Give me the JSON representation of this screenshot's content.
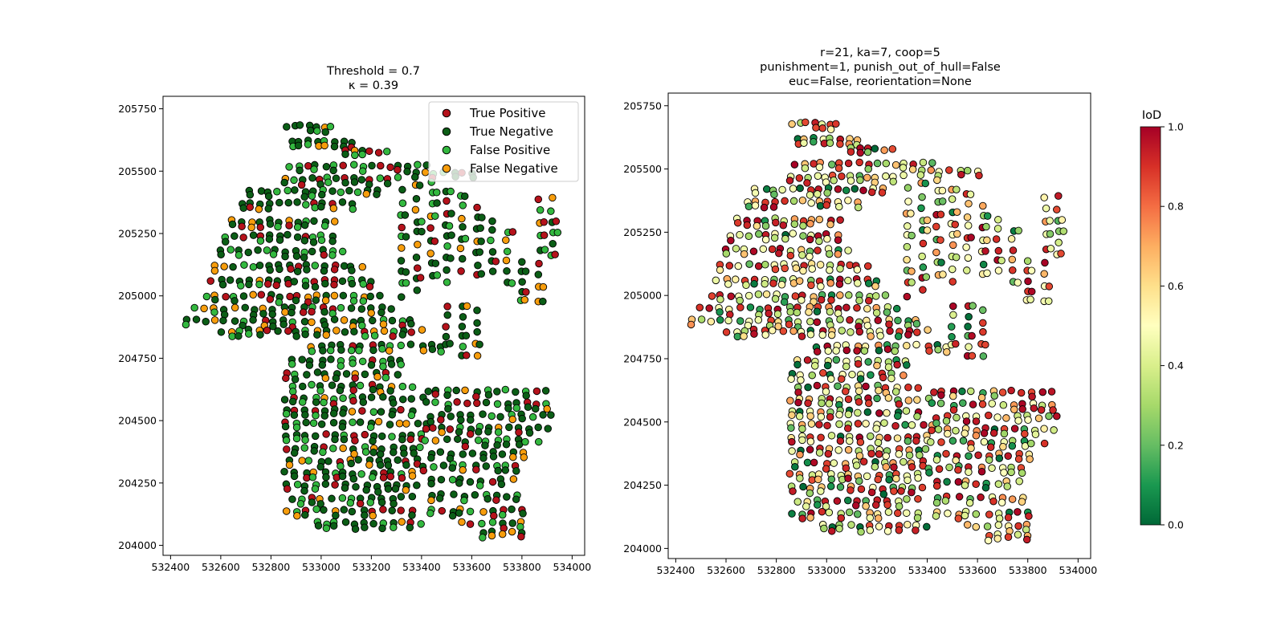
{
  "chart_data": [
    {
      "type": "scatter",
      "title_lines": [
        "Threshold = 0.7",
        "κ = 0.39"
      ],
      "xlim": [
        532370,
        534050
      ],
      "ylim": [
        203960,
        205800
      ],
      "xticks": [
        532400,
        532600,
        532800,
        533000,
        533200,
        533400,
        533600,
        533800,
        534000
      ],
      "yticks": [
        204000,
        204250,
        204500,
        204750,
        205000,
        205250,
        205500,
        205750
      ],
      "legend": {
        "placement": "upper right",
        "entries": [
          {
            "label": "True Positive",
            "color": "#b5121b"
          },
          {
            "label": "True Negative",
            "color": "#0b5e16"
          },
          {
            "label": "False Positive",
            "color": "#33b83f"
          },
          {
            "label": "False Negative",
            "color": "#f79d0c"
          }
        ]
      },
      "series_colors": {
        "TP": "#b5121b",
        "TN": "#0b5e16",
        "FP": "#33b83f",
        "FN": "#f79d0c"
      }
    },
    {
      "type": "scatter",
      "title_lines": [
        "r=21, ka=7, coop=5",
        "punishment=1, punish_out_of_hull=False",
        "euc=False, reorientation=None"
      ],
      "xlim": [
        532370,
        534050
      ],
      "ylim": [
        203960,
        205800
      ],
      "xticks": [
        532400,
        532600,
        532800,
        533000,
        533200,
        533400,
        533600,
        533800,
        534000
      ],
      "yticks": [
        204000,
        204250,
        204500,
        204750,
        205000,
        205250,
        205500,
        205750
      ],
      "colorbar": {
        "label": "IoD",
        "colormap": "RdYlGn_r",
        "range": [
          0.0,
          1.0
        ],
        "ticks": [
          "0.0",
          "0.2",
          "0.4",
          "0.6",
          "0.8",
          "1.0"
        ]
      }
    }
  ],
  "building_rows": [
    {
      "x0": 532860,
      "x1": 533040,
      "y": 205680,
      "n": 7
    },
    {
      "x0": 532880,
      "x1": 533120,
      "y": 205620,
      "n": 8
    },
    {
      "x0": 533100,
      "x1": 533260,
      "y": 205580,
      "n": 6
    },
    {
      "x0": 532870,
      "x1": 533420,
      "y": 205520,
      "n": 16
    },
    {
      "x0": 532860,
      "x1": 533300,
      "y": 205470,
      "n": 14
    },
    {
      "x0": 533380,
      "x1": 533600,
      "y": 205490,
      "n": 7
    },
    {
      "x0": 532720,
      "x1": 533220,
      "y": 205420,
      "n": 15
    },
    {
      "x0": 532680,
      "x1": 533120,
      "y": 205370,
      "n": 13
    },
    {
      "x0": 532650,
      "x1": 533050,
      "y": 205300,
      "n": 12
    },
    {
      "x0": 532620,
      "x1": 533040,
      "y": 205240,
      "n": 13
    },
    {
      "x0": 532600,
      "x1": 533080,
      "y": 205180,
      "n": 14
    },
    {
      "x0": 532580,
      "x1": 533160,
      "y": 205120,
      "n": 17
    },
    {
      "x0": 532560,
      "x1": 533200,
      "y": 205060,
      "n": 18
    },
    {
      "x0": 532540,
      "x1": 533240,
      "y": 205000,
      "n": 20
    },
    {
      "x0": 532500,
      "x1": 533280,
      "y": 204950,
      "n": 21
    },
    {
      "x0": 532460,
      "x1": 533360,
      "y": 204900,
      "n": 24
    },
    {
      "x0": 532600,
      "x1": 533400,
      "y": 204860,
      "n": 22
    },
    {
      "x0": 532960,
      "x1": 533480,
      "y": 204800,
      "n": 14
    },
    {
      "x0": 532880,
      "x1": 533320,
      "y": 204740,
      "n": 12
    },
    {
      "x0": 532860,
      "x1": 533300,
      "y": 204690,
      "n": 12
    },
    {
      "x0": 532880,
      "x1": 533360,
      "y": 204640,
      "n": 13
    },
    {
      "x0": 532860,
      "x1": 533400,
      "y": 204590,
      "n": 15
    },
    {
      "x0": 532860,
      "x1": 533360,
      "y": 204540,
      "n": 14
    },
    {
      "x0": 532860,
      "x1": 533420,
      "y": 204490,
      "n": 16
    },
    {
      "x0": 532860,
      "x1": 533400,
      "y": 204440,
      "n": 15
    },
    {
      "x0": 532860,
      "x1": 533400,
      "y": 204390,
      "n": 15
    },
    {
      "x0": 532880,
      "x1": 533380,
      "y": 204340,
      "n": 14
    },
    {
      "x0": 532860,
      "x1": 533360,
      "y": 204290,
      "n": 14
    },
    {
      "x0": 532860,
      "x1": 533380,
      "y": 204240,
      "n": 14
    },
    {
      "x0": 532880,
      "x1": 533360,
      "y": 204190,
      "n": 13
    },
    {
      "x0": 532860,
      "x1": 533360,
      "y": 204140,
      "n": 14
    },
    {
      "x0": 532980,
      "x1": 533400,
      "y": 204090,
      "n": 12
    },
    {
      "x0": 533420,
      "x1": 533900,
      "y": 204620,
      "n": 13
    },
    {
      "x0": 533420,
      "x1": 533900,
      "y": 204570,
      "n": 13
    },
    {
      "x0": 533440,
      "x1": 533920,
      "y": 204520,
      "n": 13
    },
    {
      "x0": 533440,
      "x1": 533900,
      "y": 204470,
      "n": 13
    },
    {
      "x0": 533420,
      "x1": 533860,
      "y": 204420,
      "n": 12
    },
    {
      "x0": 533440,
      "x1": 533800,
      "y": 204370,
      "n": 10
    },
    {
      "x0": 533400,
      "x1": 533780,
      "y": 204320,
      "n": 10
    },
    {
      "x0": 533440,
      "x1": 533760,
      "y": 204260,
      "n": 9
    },
    {
      "x0": 533440,
      "x1": 533780,
      "y": 204200,
      "n": 9
    },
    {
      "x0": 533440,
      "x1": 533800,
      "y": 204140,
      "n": 10
    },
    {
      "x0": 533560,
      "x1": 533800,
      "y": 204090,
      "n": 7
    },
    {
      "x0": 533640,
      "x1": 533800,
      "y": 204050,
      "n": 5
    }
  ],
  "building_columns": [
    {
      "x": 533320,
      "y0": 205000,
      "y1": 205420,
      "n": 10
    },
    {
      "x": 533380,
      "y0": 205020,
      "y1": 205440,
      "n": 10
    },
    {
      "x": 533440,
      "y0": 205080,
      "y1": 205460,
      "n": 9
    },
    {
      "x": 533500,
      "y0": 205060,
      "y1": 205420,
      "n": 9
    },
    {
      "x": 533560,
      "y0": 205100,
      "y1": 205400,
      "n": 8
    },
    {
      "x": 533620,
      "y0": 205080,
      "y1": 205360,
      "n": 7
    },
    {
      "x": 533680,
      "y0": 205100,
      "y1": 205300,
      "n": 6
    },
    {
      "x": 533740,
      "y0": 205060,
      "y1": 205260,
      "n": 6
    },
    {
      "x": 533800,
      "y0": 204980,
      "y1": 205140,
      "n": 5
    },
    {
      "x": 533870,
      "y0": 204980,
      "y1": 205390,
      "n": 9
    },
    {
      "x": 533920,
      "y0": 205160,
      "y1": 205390,
      "n": 6
    },
    {
      "x": 533500,
      "y0": 204800,
      "y1": 204960,
      "n": 5
    },
    {
      "x": 533560,
      "y0": 204760,
      "y1": 204960,
      "n": 6
    },
    {
      "x": 533620,
      "y0": 204760,
      "y1": 204940,
      "n": 5
    }
  ]
}
